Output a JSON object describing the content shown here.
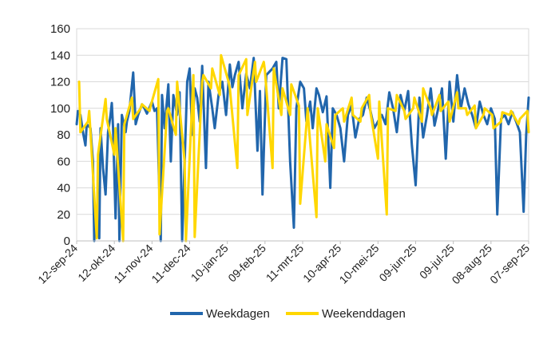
{
  "chart_data": {
    "type": "line",
    "title": "",
    "xlabel": "",
    "ylabel": "",
    "ylim": [
      0,
      160
    ],
    "yticks": [
      0,
      20,
      40,
      60,
      80,
      100,
      120,
      140,
      160
    ],
    "xlim": [
      "2024-09-12",
      "2025-09-07"
    ],
    "x_tick_labels": [
      "12-sep-24",
      "12-okt-24",
      "11-nov-24",
      "11-dec-24",
      "10-jan-25",
      "09-feb-25",
      "11-mrt-25",
      "10-apr-25",
      "10-mei-25",
      "09-jun-25",
      "09-jul-25",
      "08-aug-25",
      "07-sep-25"
    ],
    "grid": "horizontal",
    "legend_position": "bottom",
    "series": [
      {
        "name": "Weekdagen",
        "color": "#2166ac",
        "points": [
          [
            "2024-09-12",
            88
          ],
          [
            "2024-09-13",
            98
          ],
          [
            "2024-09-15",
            95
          ],
          [
            "2024-09-17",
            82
          ],
          [
            "2024-09-19",
            72
          ],
          [
            "2024-09-20",
            88
          ],
          [
            "2024-09-23",
            85
          ],
          [
            "2024-09-25",
            60
          ],
          [
            "2024-09-26",
            0
          ],
          [
            "2024-09-27",
            18
          ],
          [
            "2024-09-30",
            2
          ],
          [
            "2024-10-01",
            85
          ],
          [
            "2024-10-03",
            55
          ],
          [
            "2024-10-05",
            35
          ],
          [
            "2024-10-07",
            82
          ],
          [
            "2024-10-09",
            95
          ],
          [
            "2024-10-10",
            104
          ],
          [
            "2024-10-11",
            85
          ],
          [
            "2024-10-13",
            17
          ],
          [
            "2024-10-15",
            88
          ],
          [
            "2024-10-16",
            0
          ],
          [
            "2024-10-18",
            95
          ],
          [
            "2024-10-21",
            82
          ],
          [
            "2024-10-22",
            90
          ],
          [
            "2024-10-24",
            98
          ],
          [
            "2024-10-27",
            127
          ],
          [
            "2024-10-29",
            88
          ],
          [
            "2024-10-31",
            95
          ],
          [
            "2024-11-03",
            103
          ],
          [
            "2024-11-05",
            100
          ],
          [
            "2024-11-07",
            96
          ],
          [
            "2024-11-11",
            105
          ],
          [
            "2024-11-13",
            98
          ],
          [
            "2024-11-15",
            100
          ],
          [
            "2024-11-18",
            0
          ],
          [
            "2024-11-19",
            110
          ],
          [
            "2024-11-21",
            85
          ],
          [
            "2024-11-24",
            118
          ],
          [
            "2024-11-26",
            60
          ],
          [
            "2024-11-28",
            110
          ],
          [
            "2024-12-01",
            95
          ],
          [
            "2024-12-03",
            112
          ],
          [
            "2024-12-05",
            0
          ],
          [
            "2024-12-09",
            120
          ],
          [
            "2024-12-11",
            130
          ],
          [
            "2024-12-13",
            80
          ],
          [
            "2024-12-15",
            115
          ],
          [
            "2024-12-17",
            108
          ],
          [
            "2024-12-19",
            90
          ],
          [
            "2024-12-21",
            132
          ],
          [
            "2024-12-24",
            55
          ],
          [
            "2024-12-26",
            120
          ],
          [
            "2024-12-29",
            100
          ],
          [
            "2024-12-31",
            85
          ],
          [
            "2025-01-03",
            110
          ],
          [
            "2025-01-06",
            120
          ],
          [
            "2025-01-09",
            95
          ],
          [
            "2025-01-12",
            133
          ],
          [
            "2025-01-14",
            116
          ],
          [
            "2025-01-16",
            125
          ],
          [
            "2025-01-19",
            135
          ],
          [
            "2025-01-22",
            100
          ],
          [
            "2025-01-25",
            126
          ],
          [
            "2025-01-28",
            115
          ],
          [
            "2025-01-31",
            138
          ],
          [
            "2025-02-03",
            68
          ],
          [
            "2025-02-05",
            113
          ],
          [
            "2025-02-07",
            35
          ],
          [
            "2025-02-10",
            125
          ],
          [
            "2025-02-13",
            128
          ],
          [
            "2025-02-15",
            130
          ],
          [
            "2025-02-18",
            135
          ],
          [
            "2025-02-20",
            100
          ],
          [
            "2025-02-23",
            138
          ],
          [
            "2025-02-26",
            137
          ],
          [
            "2025-03-01",
            60
          ],
          [
            "2025-03-04",
            10
          ],
          [
            "2025-03-06",
            100
          ],
          [
            "2025-03-09",
            120
          ],
          [
            "2025-03-12",
            115
          ],
          [
            "2025-03-14",
            90
          ],
          [
            "2025-03-17",
            105
          ],
          [
            "2025-03-19",
            85
          ],
          [
            "2025-03-22",
            115
          ],
          [
            "2025-03-24",
            110
          ],
          [
            "2025-03-27",
            97
          ],
          [
            "2025-03-30",
            109
          ],
          [
            "2025-04-02",
            40
          ],
          [
            "2025-04-04",
            100
          ],
          [
            "2025-04-07",
            95
          ],
          [
            "2025-04-10",
            85
          ],
          [
            "2025-04-13",
            60
          ],
          [
            "2025-04-16",
            95
          ],
          [
            "2025-04-19",
            102
          ],
          [
            "2025-04-22",
            78
          ],
          [
            "2025-04-25",
            92
          ],
          [
            "2025-04-28",
            95
          ],
          [
            "2025-05-01",
            108
          ],
          [
            "2025-05-04",
            98
          ],
          [
            "2025-05-07",
            85
          ],
          [
            "2025-05-10",
            90
          ],
          [
            "2025-05-13",
            95
          ],
          [
            "2025-05-16",
            88
          ],
          [
            "2025-05-19",
            112
          ],
          [
            "2025-05-22",
            100
          ],
          [
            "2025-05-25",
            82
          ],
          [
            "2025-05-28",
            110
          ],
          [
            "2025-05-31",
            98
          ],
          [
            "2025-06-03",
            113
          ],
          [
            "2025-06-06",
            72
          ],
          [
            "2025-06-09",
            42
          ],
          [
            "2025-06-12",
            108
          ],
          [
            "2025-06-15",
            78
          ],
          [
            "2025-06-18",
            95
          ],
          [
            "2025-06-21",
            115
          ],
          [
            "2025-06-24",
            87
          ],
          [
            "2025-06-27",
            100
          ],
          [
            "2025-06-30",
            115
          ],
          [
            "2025-07-03",
            62
          ],
          [
            "2025-07-06",
            120
          ],
          [
            "2025-07-09",
            90
          ],
          [
            "2025-07-12",
            125
          ],
          [
            "2025-07-15",
            100
          ],
          [
            "2025-07-18",
            115
          ],
          [
            "2025-07-21",
            103
          ],
          [
            "2025-07-24",
            95
          ],
          [
            "2025-07-27",
            85
          ],
          [
            "2025-07-30",
            105
          ],
          [
            "2025-08-02",
            95
          ],
          [
            "2025-08-05",
            88
          ],
          [
            "2025-08-08",
            100
          ],
          [
            "2025-08-11",
            92
          ],
          [
            "2025-08-13",
            20
          ],
          [
            "2025-08-16",
            92
          ],
          [
            "2025-08-19",
            95
          ],
          [
            "2025-08-22",
            88
          ],
          [
            "2025-08-25",
            97
          ],
          [
            "2025-08-28",
            90
          ],
          [
            "2025-08-31",
            82
          ],
          [
            "2025-09-03",
            22
          ],
          [
            "2025-09-05",
            80
          ],
          [
            "2025-09-07",
            108
          ]
        ]
      },
      {
        "name": "Weekenddagen",
        "color": "#ffd700",
        "points": [
          [
            "2024-09-14",
            120
          ],
          [
            "2024-09-15",
            82
          ],
          [
            "2024-09-21",
            90
          ],
          [
            "2024-09-22",
            98
          ],
          [
            "2024-09-28",
            2
          ],
          [
            "2024-09-29",
            65
          ],
          [
            "2024-10-05",
            107
          ],
          [
            "2024-10-06",
            92
          ],
          [
            "2024-10-12",
            65
          ],
          [
            "2024-10-13",
            85
          ],
          [
            "2024-10-19",
            0
          ],
          [
            "2024-10-20",
            88
          ],
          [
            "2024-10-26",
            108
          ],
          [
            "2024-10-27",
            92
          ],
          [
            "2024-11-02",
            100
          ],
          [
            "2024-11-03",
            103
          ],
          [
            "2024-11-09",
            98
          ],
          [
            "2024-11-10",
            102
          ],
          [
            "2024-11-16",
            122
          ],
          [
            "2024-11-17",
            5
          ],
          [
            "2024-11-23",
            98
          ],
          [
            "2024-11-24",
            100
          ],
          [
            "2024-11-30",
            80
          ],
          [
            "2024-12-01",
            120
          ],
          [
            "2024-12-07",
            60
          ],
          [
            "2024-12-08",
            0
          ],
          [
            "2024-12-14",
            125
          ],
          [
            "2024-12-15",
            3
          ],
          [
            "2024-12-21",
            120
          ],
          [
            "2024-12-22",
            125
          ],
          [
            "2024-12-28",
            115
          ],
          [
            "2024-12-29",
            130
          ],
          [
            "2025-01-04",
            110
          ],
          [
            "2025-01-05",
            140
          ],
          [
            "2025-01-11",
            120
          ],
          [
            "2025-01-12",
            115
          ],
          [
            "2025-01-18",
            55
          ],
          [
            "2025-01-19",
            125
          ],
          [
            "2025-01-25",
            137
          ],
          [
            "2025-01-26",
            95
          ],
          [
            "2025-02-01",
            135
          ],
          [
            "2025-02-02",
            120
          ],
          [
            "2025-02-08",
            135
          ],
          [
            "2025-02-09",
            128
          ],
          [
            "2025-02-15",
            55
          ],
          [
            "2025-02-16",
            130
          ],
          [
            "2025-02-22",
            95
          ],
          [
            "2025-02-23",
            115
          ],
          [
            "2025-03-01",
            95
          ],
          [
            "2025-03-02",
            118
          ],
          [
            "2025-03-08",
            102
          ],
          [
            "2025-03-09",
            28
          ],
          [
            "2025-03-15",
            100
          ],
          [
            "2025-03-16",
            85
          ],
          [
            "2025-03-22",
            18
          ],
          [
            "2025-03-23",
            100
          ],
          [
            "2025-03-29",
            60
          ],
          [
            "2025-03-30",
            88
          ],
          [
            "2025-04-05",
            70
          ],
          [
            "2025-04-06",
            95
          ],
          [
            "2025-04-12",
            100
          ],
          [
            "2025-04-13",
            90
          ],
          [
            "2025-04-19",
            108
          ],
          [
            "2025-04-20",
            95
          ],
          [
            "2025-04-26",
            90
          ],
          [
            "2025-04-27",
            100
          ],
          [
            "2025-05-03",
            110
          ],
          [
            "2025-05-04",
            97
          ],
          [
            "2025-05-10",
            62
          ],
          [
            "2025-05-11",
            105
          ],
          [
            "2025-05-17",
            20
          ],
          [
            "2025-05-18",
            100
          ],
          [
            "2025-05-24",
            98
          ],
          [
            "2025-05-25",
            110
          ],
          [
            "2025-05-31",
            98
          ],
          [
            "2025-06-01",
            92
          ],
          [
            "2025-06-07",
            100
          ],
          [
            "2025-06-08",
            108
          ],
          [
            "2025-06-14",
            90
          ],
          [
            "2025-06-15",
            115
          ],
          [
            "2025-06-21",
            100
          ],
          [
            "2025-06-22",
            95
          ],
          [
            "2025-06-28",
            110
          ],
          [
            "2025-06-29",
            98
          ],
          [
            "2025-07-05",
            105
          ],
          [
            "2025-07-06",
            90
          ],
          [
            "2025-07-12",
            112
          ],
          [
            "2025-07-13",
            100
          ],
          [
            "2025-07-19",
            100
          ],
          [
            "2025-07-20",
            95
          ],
          [
            "2025-07-26",
            102
          ],
          [
            "2025-07-27",
            85
          ],
          [
            "2025-08-02",
            95
          ],
          [
            "2025-08-03",
            100
          ],
          [
            "2025-08-09",
            95
          ],
          [
            "2025-08-10",
            85
          ],
          [
            "2025-08-16",
            90
          ],
          [
            "2025-08-17",
            97
          ],
          [
            "2025-08-23",
            95
          ],
          [
            "2025-08-24",
            98
          ],
          [
            "2025-08-30",
            88
          ],
          [
            "2025-08-31",
            92
          ],
          [
            "2025-09-06",
            98
          ],
          [
            "2025-09-07",
            82
          ]
        ]
      }
    ]
  }
}
